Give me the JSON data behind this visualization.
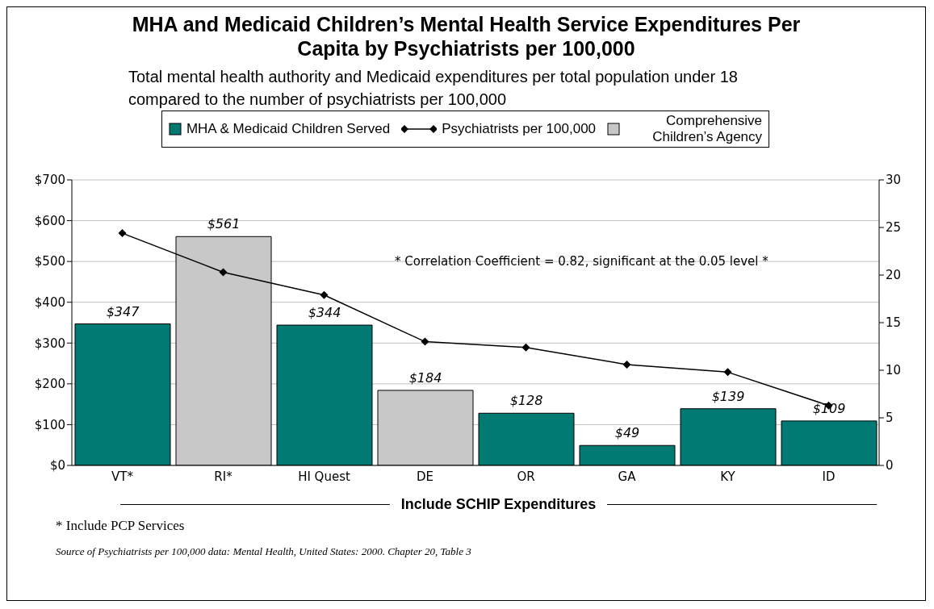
{
  "chart_data": {
    "type": "bar",
    "title": "MHA and Medicaid Children’s Mental Health Service Expenditures Per Capita by Psychiatrists per 100,000",
    "subtitle": "Total mental health authority and Medicaid expenditures per total population under 18 compared to the number of psychiatrists per 100,000",
    "categories": [
      "VT*",
      "RI*",
      "HI Quest",
      "DE",
      "OR",
      "GA",
      "KY",
      "ID"
    ],
    "stacked": true,
    "series": [
      {
        "name": "MHA & Medicaid Children Served",
        "color": "#007a73",
        "values": [
          347,
          null,
          344,
          null,
          128,
          49,
          139,
          109
        ],
        "value_labels": [
          "$347",
          null,
          "$344",
          null,
          "$128",
          "$49",
          "$139",
          "$109"
        ]
      },
      {
        "name": "Psychiatrists per 100,000",
        "type": "line",
        "axis": "y2",
        "color": "#000000",
        "marker": "diamond",
        "values": [
          24.4,
          20.3,
          17.9,
          13.0,
          12.4,
          10.6,
          9.8,
          6.3
        ]
      },
      {
        "name": "Comprehensive Children’s Agency",
        "color": "#c8c8c8",
        "values": [
          null,
          561,
          null,
          184,
          null,
          null,
          null,
          null
        ],
        "value_labels": [
          null,
          "$561",
          null,
          "$184",
          null,
          null,
          null,
          null
        ]
      }
    ],
    "ylim": [
      0,
      700
    ],
    "yticks": [
      {
        "value": 0,
        "label": "$0"
      },
      {
        "value": 100,
        "label": "$100"
      },
      {
        "value": 200,
        "label": "$200"
      },
      {
        "value": 300,
        "label": "$300"
      },
      {
        "value": 400,
        "label": "$400"
      },
      {
        "value": 500,
        "label": "$500"
      },
      {
        "value": 600,
        "label": "$600"
      },
      {
        "value": 700,
        "label": "$700"
      }
    ],
    "y2lim": [
      0,
      30
    ],
    "y2ticks": [
      0,
      5,
      10,
      15,
      20,
      25,
      30
    ],
    "xlabel": "Include SCHIP Expenditures",
    "grid": "y",
    "legend": "top",
    "annotations": [
      "* Correlation Coefficient = 0.82, significant at the 0.05 level *",
      "* Include PCP Services",
      "Source of Psychiatrists per 100,000 data: Mental Health, United States: 2000. Chapter 20, Table 3"
    ]
  }
}
